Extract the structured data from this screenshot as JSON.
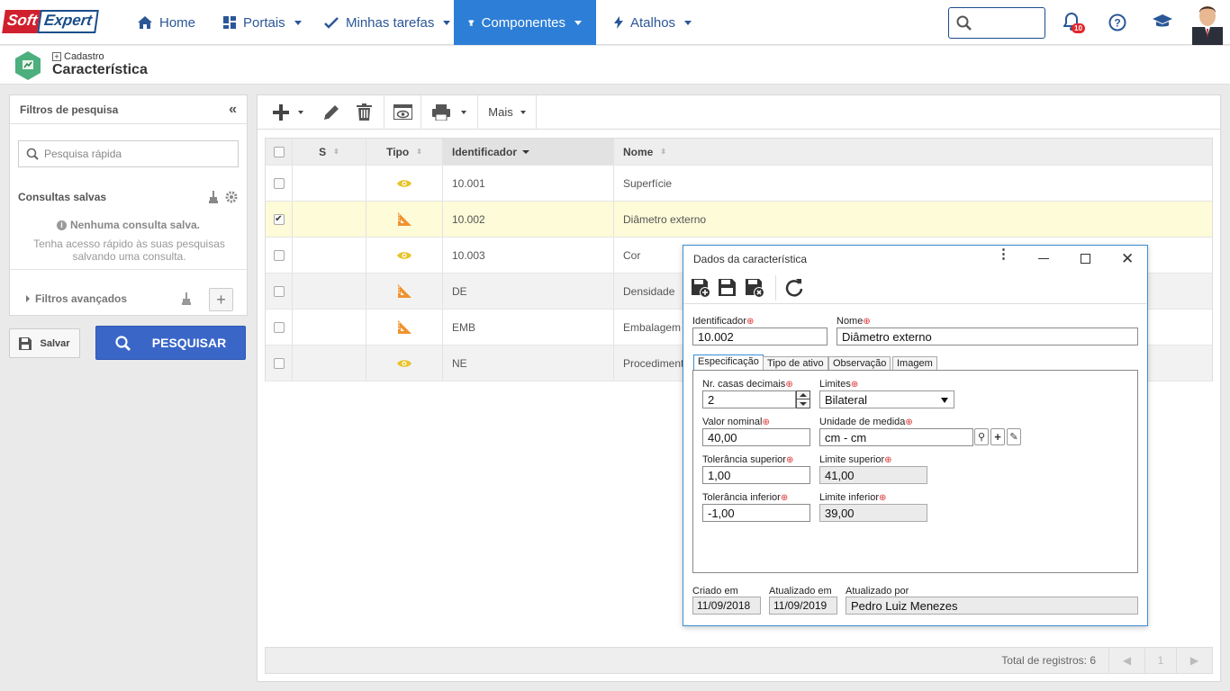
{
  "brand": {
    "part1": "Soft",
    "part2": "Expert"
  },
  "nav": {
    "home": "Home",
    "portais": "Portais",
    "tarefas": "Minhas tarefas",
    "componentes": "Componentes",
    "atalhos": "Atalhos"
  },
  "notifications": {
    "count": "10"
  },
  "colors": {
    "nav_active": "#2d7ed6",
    "primary_button": "#3a66c8",
    "selected_row": "#fdfbd8",
    "dialog_border": "#3a8ed3"
  },
  "header": {
    "breadcrumb": "Cadastro",
    "title": "Característica"
  },
  "filters": {
    "title": "Filtros de pesquisa",
    "search_placeholder": "Pesquisa rápida",
    "saved_title": "Consultas salvas",
    "no_saved": "Nenhuma consulta salva.",
    "hint": "Tenha acesso rápido às suas pesquisas salvando uma consulta.",
    "advanced": "Filtros avançados",
    "save_label": "Salvar",
    "search_label": "PESQUISAR"
  },
  "toolbar": {
    "more": "Mais"
  },
  "grid": {
    "columns": [
      "S",
      "Tipo",
      "Identificador",
      "Nome"
    ],
    "rows": [
      {
        "type": "eye",
        "id": "10.001",
        "name": "Superfície",
        "checked": false
      },
      {
        "type": "ruler",
        "id": "10.002",
        "name": "Diâmetro externo",
        "checked": true
      },
      {
        "type": "eye",
        "id": "10.003",
        "name": "Cor",
        "checked": false
      },
      {
        "type": "ruler",
        "id": "DE",
        "name": "Densidade",
        "checked": false
      },
      {
        "type": "ruler",
        "id": "EMB",
        "name": "Embalagem",
        "checked": false
      },
      {
        "type": "eye",
        "id": "NE",
        "name": "Procedimento",
        "checked": false
      }
    ],
    "total_label": "Total de registros: 6",
    "page": "1"
  },
  "dialog": {
    "title": "Dados da característica",
    "identificador_label": "Identificador",
    "identificador": "10.002",
    "nome_label": "Nome",
    "nome": "Diâmetro externo",
    "tabs": [
      "Especificação",
      "Tipo de ativo",
      "Observação",
      "Imagem"
    ],
    "casas_label": "Nr. casas decimais",
    "casas": "2",
    "limites_label": "Limites",
    "limites": "Bilateral",
    "nominal_label": "Valor nominal",
    "nominal": "40,00",
    "unidade_label": "Unidade de medida",
    "unidade": "cm - cm",
    "tol_sup_label": "Tolerância superior",
    "tol_sup": "1,00",
    "lim_sup_label": "Limite superior",
    "lim_sup": "41,00",
    "tol_inf_label": "Tolerância inferior",
    "tol_inf": "-1,00",
    "lim_inf_label": "Limite inferior",
    "lim_inf": "39,00",
    "criado_label": "Criado em",
    "criado": "11/09/2018",
    "atualizado_label": "Atualizado em",
    "atualizado": "11/09/2019",
    "atualizado_por_label": "Atualizado por",
    "atualizado_por": "Pedro Luiz Menezes"
  }
}
